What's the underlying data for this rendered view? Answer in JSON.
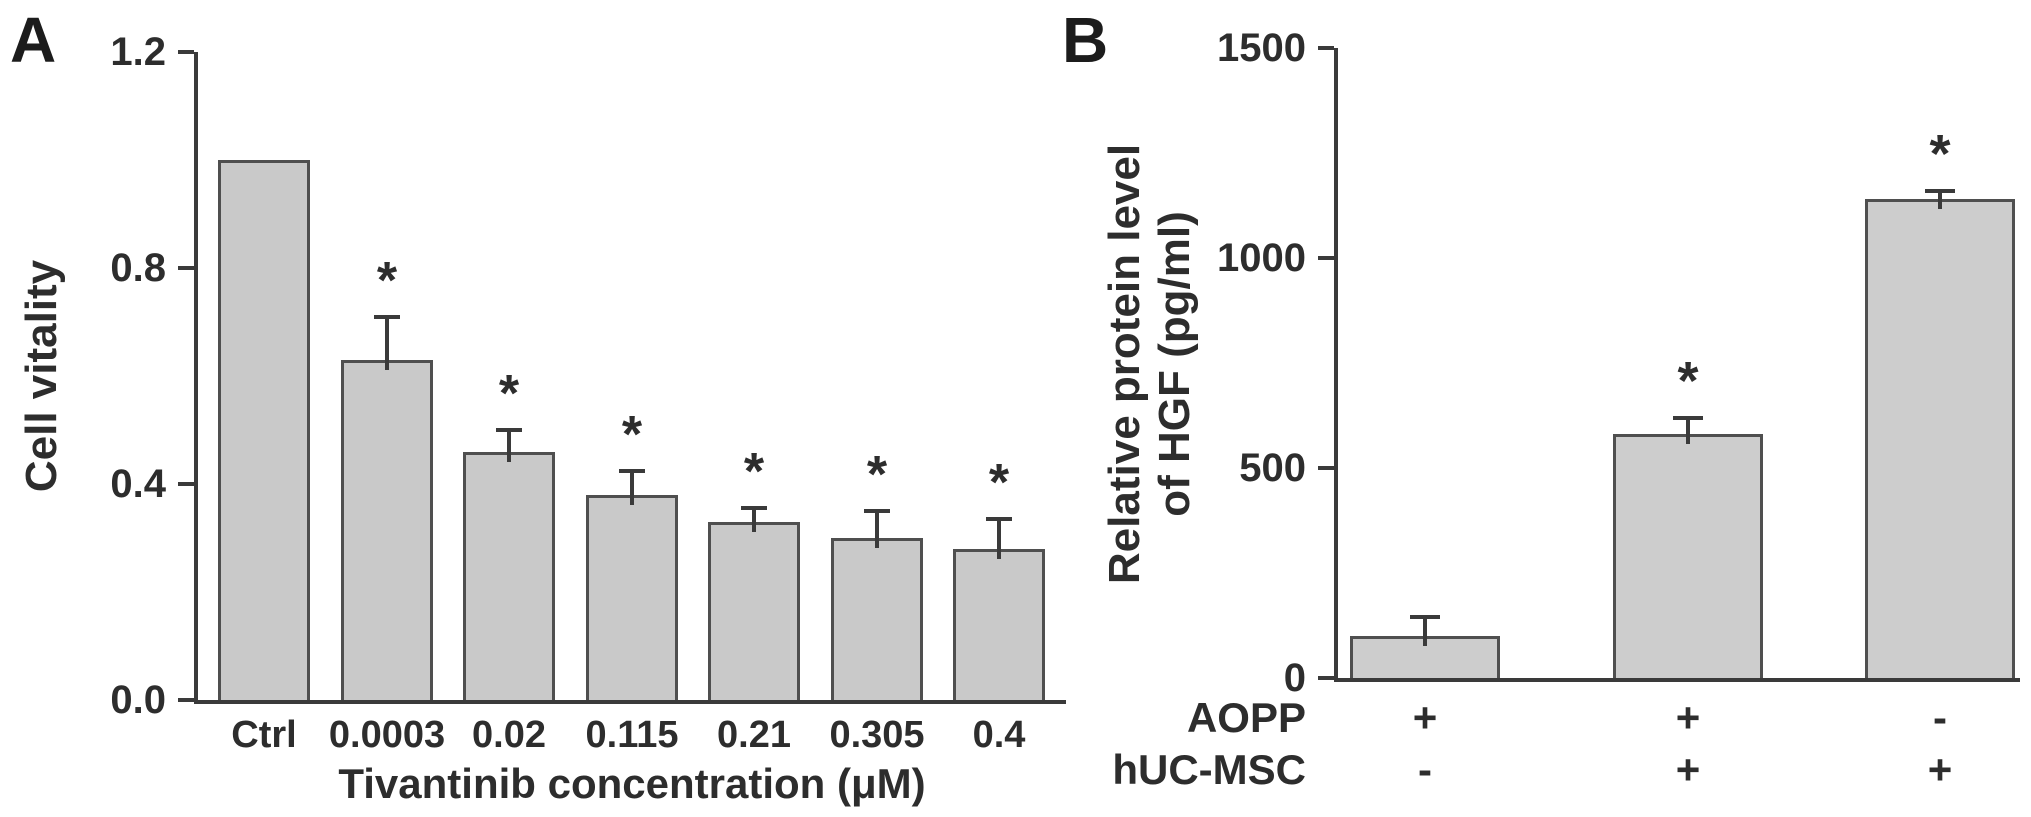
{
  "figure": {
    "background": "#ffffff",
    "text_color": "#2d2d2d",
    "axis_color": "#3a3a3a"
  },
  "panels": [
    {
      "label": "A"
    },
    {
      "label": "B"
    }
  ],
  "chart_data": [
    {
      "type": "bar",
      "panel": "A",
      "title": "",
      "xlabel": "Tivantinib concentration (μM)",
      "ylabel": "Cell vitality",
      "ylim": [
        0,
        1.2
      ],
      "yticks": [
        0,
        0.4,
        0.8,
        1.2
      ],
      "ytick_labels": [
        "0.0",
        "0.4",
        "0.8",
        "1.2"
      ],
      "categories": [
        "Ctrl",
        "0.0003",
        "0.02",
        "0.115",
        "0.21",
        "0.305",
        "0.4"
      ],
      "values": [
        1.0,
        0.63,
        0.46,
        0.38,
        0.33,
        0.3,
        0.28
      ],
      "errors": [
        0,
        0.08,
        0.04,
        0.045,
        0.025,
        0.05,
        0.055
      ],
      "significance": [
        "",
        "*",
        "*",
        "*",
        "*",
        "*",
        "*"
      ],
      "grid": false,
      "legend": null,
      "bar_fill": "#c9c9c9",
      "bar_border": "#4f4f4f"
    },
    {
      "type": "bar",
      "panel": "B",
      "title": "",
      "xlabel": "",
      "ylabel": "Relative protein level\nof HGF (pg/ml)",
      "ylim": [
        0,
        1500
      ],
      "yticks": [
        0,
        500,
        1000,
        1500
      ],
      "ytick_labels": [
        "0",
        "500",
        "1000",
        "1500"
      ],
      "categories": [],
      "values": [
        100,
        580,
        1140
      ],
      "errors": [
        45,
        40,
        20
      ],
      "significance": [
        "",
        "*",
        "*"
      ],
      "condition_rows": [
        {
          "label": "AOPP",
          "values": [
            "+",
            "+",
            "-"
          ]
        },
        {
          "label": "hUC-MSC",
          "values": [
            "-",
            "+",
            "+"
          ]
        }
      ],
      "grid": false,
      "legend": null,
      "bar_fill": "#cdcdcd",
      "bar_border": "#4f4f4f"
    }
  ]
}
